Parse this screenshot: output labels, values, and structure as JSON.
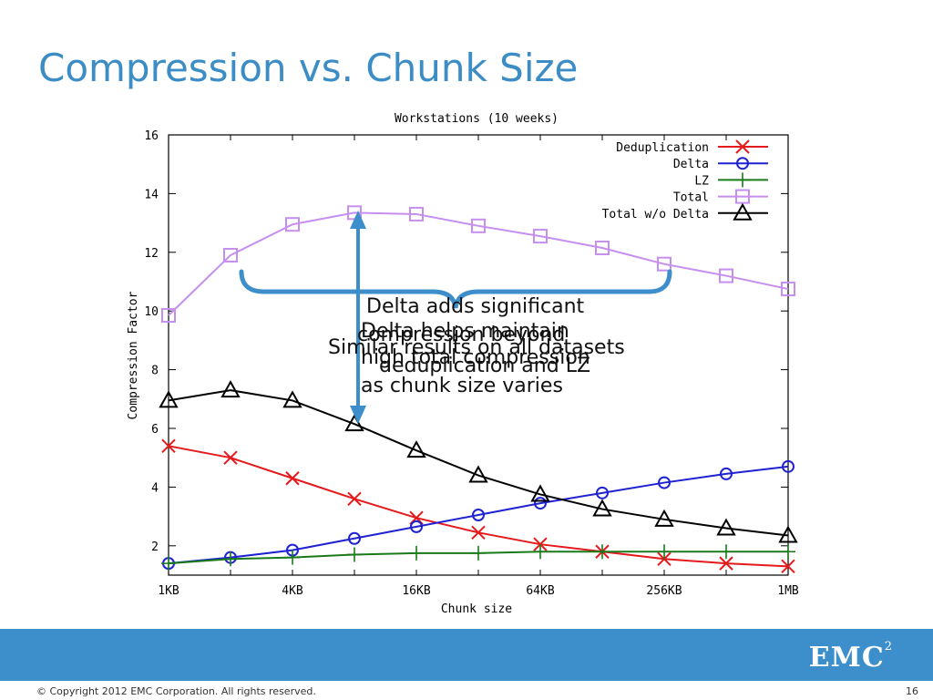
{
  "slide": {
    "title": "Compression vs. Chunk Size",
    "copyright": "© Copyright 2012 EMC Corporation. All rights reserved.",
    "page_number": "16",
    "logo_text": "EMC",
    "logo_sup": "2"
  },
  "callouts": {
    "line1_top": "Delta adds significant",
    "line2_top": "compression beyond",
    "line3_top": "deduplication and LZ",
    "maintain_1": "Delta helps maintain",
    "maintain_2": "high total compression",
    "maintain_3": "as chunk size varies",
    "similar": "Similar results on all datasets"
  },
  "chart_data": {
    "type": "line",
    "title": "Workstations (10 weeks)",
    "xlabel": "Chunk size",
    "ylabel": "Compression Factor",
    "categories": [
      "1KB",
      "2KB",
      "4KB",
      "8KB",
      "16KB",
      "32KB",
      "64KB",
      "128KB",
      "256KB",
      "512KB",
      "1MB"
    ],
    "x_tick_labels": [
      "1KB",
      "4KB",
      "16KB",
      "64KB",
      "256KB",
      "1MB"
    ],
    "ylim": [
      1,
      16
    ],
    "y_ticks": [
      2,
      4,
      6,
      8,
      10,
      12,
      14,
      16
    ],
    "legend_position": "top-right",
    "series": [
      {
        "name": "Deduplication",
        "color": "#e41a1c",
        "marker": "x",
        "values": [
          5.4,
          5.0,
          4.3,
          3.6,
          2.95,
          2.45,
          2.05,
          1.8,
          1.55,
          1.4,
          1.3
        ]
      },
      {
        "name": "Delta",
        "color": "#1f22d1",
        "marker": "circle",
        "values": [
          1.4,
          1.6,
          1.85,
          2.25,
          2.65,
          3.05,
          3.45,
          3.8,
          4.15,
          4.45,
          4.7
        ]
      },
      {
        "name": "LZ",
        "color": "#1a7a1a",
        "marker": "plus",
        "values": [
          1.4,
          1.55,
          1.6,
          1.7,
          1.75,
          1.75,
          1.8,
          1.8,
          1.8,
          1.8,
          1.8
        ]
      },
      {
        "name": "Total",
        "color": "#c68fef",
        "marker": "square",
        "values": [
          9.85,
          11.9,
          12.95,
          13.35,
          13.3,
          12.9,
          12.55,
          12.15,
          11.6,
          11.2,
          10.75
        ]
      },
      {
        "name": "Total w/o Delta",
        "color": "#000000",
        "marker": "triangle",
        "values": [
          6.95,
          7.3,
          6.95,
          6.15,
          5.25,
          4.4,
          3.75,
          3.25,
          2.9,
          2.6,
          2.35
        ]
      }
    ]
  }
}
